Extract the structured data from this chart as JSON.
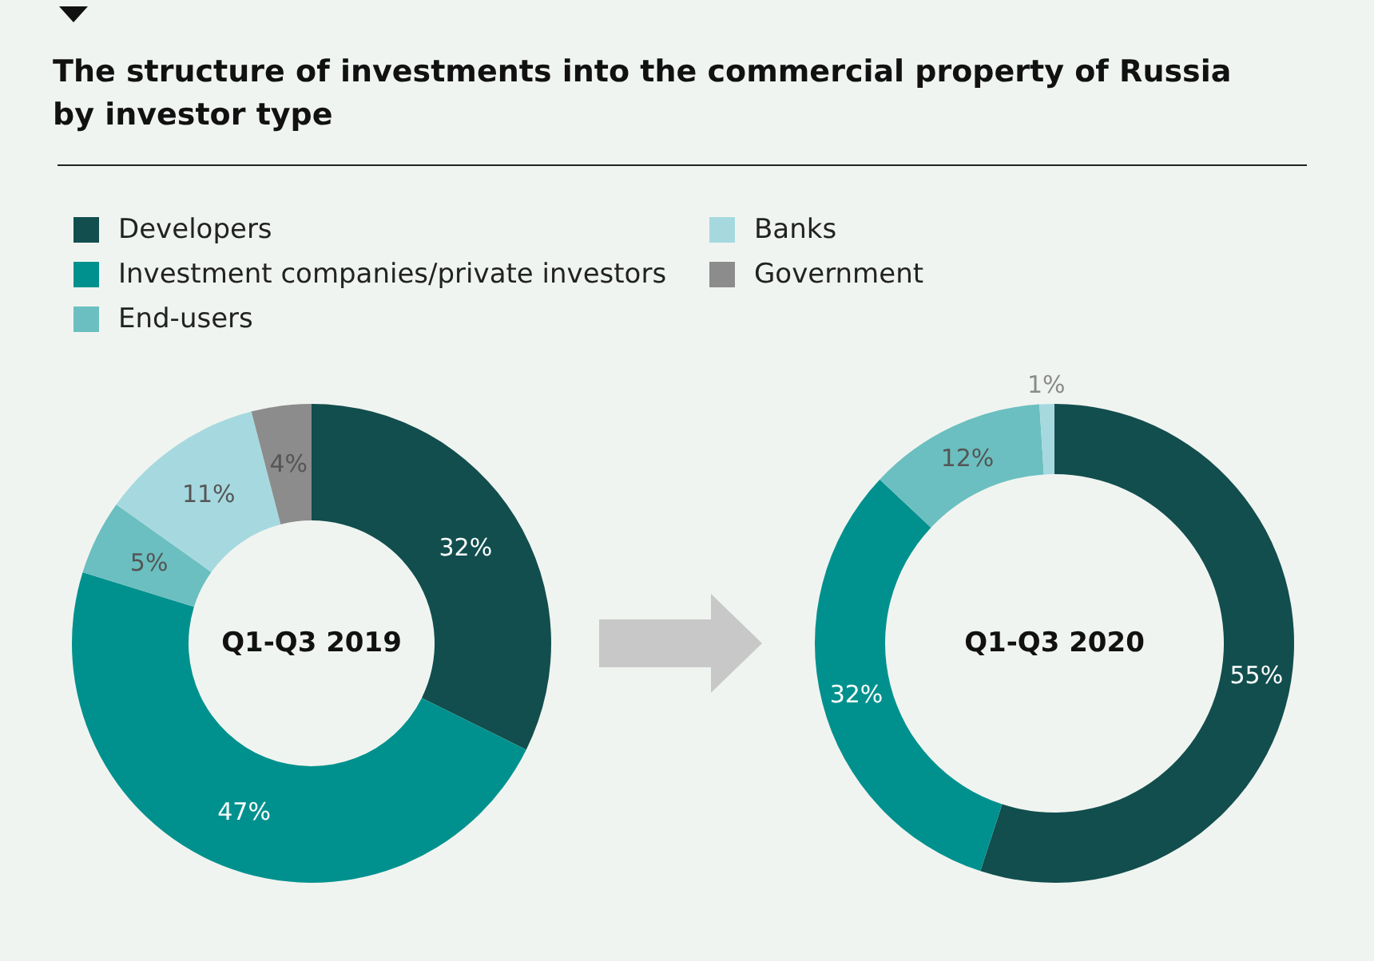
{
  "chart_data": [
    {
      "type": "donut",
      "title": "The structure of investments into the commercial property of Russia by investor type",
      "annotations": [
        "Q1-Q3 2019"
      ],
      "legend": "top",
      "categories": [
        "Developers",
        "Investment companies/private investors",
        "End-users",
        "Banks",
        "Government"
      ],
      "values": [
        32,
        47,
        5,
        11,
        4
      ],
      "value_labels": [
        "32%",
        "47%",
        "5%",
        "11%",
        "4%"
      ],
      "colors": [
        "#124e4e",
        "#00918e",
        "#6bbfc0",
        "#a6d9df",
        "#8c8c8c"
      ]
    },
    {
      "type": "donut",
      "annotations": [
        "Q1-Q3 2020"
      ],
      "categories": [
        null,
        null,
        null,
        null
      ],
      "values": [
        55,
        32,
        12,
        1
      ],
      "value_labels": [
        "55%",
        "32%",
        "12%",
        "1%"
      ],
      "colors": [
        "#124e4e",
        "#00918e",
        "#6bbfc0",
        "#a6d9df"
      ]
    }
  ]
}
